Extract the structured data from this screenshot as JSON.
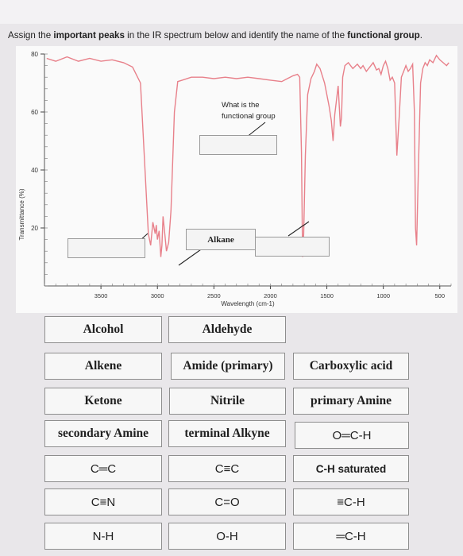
{
  "prompt": {
    "part1": "Assign the ",
    "bold1": "important peaks",
    "part2": " in the IR spectrum below and identify the name of the ",
    "bold2": "functional group",
    "part3": "."
  },
  "spectrum": {
    "ylabel": "Transmittance (%)",
    "xlabel": "Wavelength (cm-1)",
    "question_label_line1": "What is the",
    "question_label_line2": "functional group",
    "alkane_label": "Alkane"
  },
  "chart_data": {
    "type": "line",
    "title": "",
    "xlabel": "Wavelength (cm-1)",
    "ylabel": "Transmittance (%)",
    "xlim": [
      4000,
      400
    ],
    "ylim": [
      0,
      80
    ],
    "xticks": [
      3500,
      3000,
      2500,
      2000,
      1500,
      1000,
      500
    ],
    "yticks": [
      20,
      40,
      60,
      80
    ],
    "grid": false,
    "line_color": "#e8808a",
    "series": [
      {
        "x": [
          3980,
          3900,
          3800,
          3700,
          3600,
          3500,
          3400,
          3300,
          3220,
          3150,
          3110,
          3080,
          3060,
          3040,
          3020,
          3010,
          3000,
          2985,
          2970,
          2960,
          2950,
          2935,
          2920,
          2900,
          2880,
          2850,
          2820,
          2780,
          2700,
          2600,
          2500,
          2400,
          2300,
          2200,
          2100,
          2000,
          1900,
          1850,
          1800,
          1760,
          1740,
          1725,
          1715,
          1705,
          1690,
          1670,
          1640,
          1610,
          1590,
          1560,
          1520,
          1480,
          1460,
          1445,
          1430,
          1400,
          1380,
          1370,
          1360,
          1340,
          1310,
          1270,
          1230,
          1200,
          1180,
          1150,
          1120,
          1090,
          1060,
          1040,
          1020,
          1000,
          980,
          960,
          940,
          920,
          900,
          880,
          860,
          840,
          820,
          800,
          780,
          760,
          740,
          725,
          715,
          705,
          690,
          670,
          650,
          630,
          610,
          590,
          560,
          530,
          500,
          470,
          440,
          420
        ],
        "y": [
          78.5,
          77.5,
          79.0,
          77.5,
          78.5,
          77.5,
          78.0,
          77.0,
          75.5,
          70.0,
          40.0,
          18.0,
          14.0,
          22.0,
          18.0,
          21.0,
          16.0,
          19.0,
          10.0,
          14.0,
          24.0,
          18.0,
          12.0,
          15.0,
          26.0,
          60.0,
          70.5,
          71.0,
          72.0,
          72.0,
          71.5,
          72.0,
          71.5,
          72.0,
          71.5,
          71.0,
          70.5,
          71.5,
          72.5,
          73.0,
          72.0,
          46.0,
          10.0,
          18.0,
          45.0,
          66.0,
          71.5,
          74.0,
          76.5,
          75.0,
          70.0,
          62.0,
          57.0,
          50.0,
          59.0,
          69.0,
          55.0,
          58.0,
          72.0,
          76.0,
          77.0,
          75.0,
          76.5,
          75.0,
          76.0,
          74.0,
          75.5,
          77.0,
          74.5,
          75.0,
          73.0,
          76.0,
          77.5,
          75.0,
          71.0,
          72.0,
          70.0,
          45.0,
          58.0,
          72.0,
          74.0,
          76.0,
          74.0,
          75.0,
          76.5,
          60.0,
          20.0,
          14.0,
          40.0,
          70.0,
          75.0,
          77.0,
          76.0,
          78.0,
          77.0,
          79.5,
          78.0,
          77.0,
          76.0,
          77.0
        ]
      }
    ]
  },
  "cards": [
    {
      "label": "Alcohol",
      "style": "serif"
    },
    {
      "label": "Aldehyde",
      "style": "serif"
    },
    {
      "label": "Alkene",
      "style": "serif"
    },
    {
      "label": "Amide (primary)",
      "style": "serif"
    },
    {
      "label": "Carboxylic acid",
      "style": "serif"
    },
    {
      "label": "Ketone",
      "style": "serif"
    },
    {
      "label": "Nitrile",
      "style": "serif"
    },
    {
      "label": "primary Amine",
      "style": "serif"
    },
    {
      "label": "secondary Amine",
      "style": "serif"
    },
    {
      "label": "terminal Alkyne",
      "style": "serif"
    },
    {
      "label": "O═C-H",
      "style": "sans"
    },
    {
      "label": "C═C",
      "style": "sans"
    },
    {
      "label": "C≡C",
      "style": "sans"
    },
    {
      "label": "C-H saturated",
      "style": "sans-b"
    },
    {
      "label": "C≡N",
      "style": "sans"
    },
    {
      "label": "C=O",
      "style": "sans"
    },
    {
      "label": "≡C-H",
      "style": "sans"
    },
    {
      "label": "N-H",
      "style": "sans"
    },
    {
      "label": "O-H",
      "style": "sans"
    },
    {
      "label": "═C-H",
      "style": "sans"
    }
  ]
}
